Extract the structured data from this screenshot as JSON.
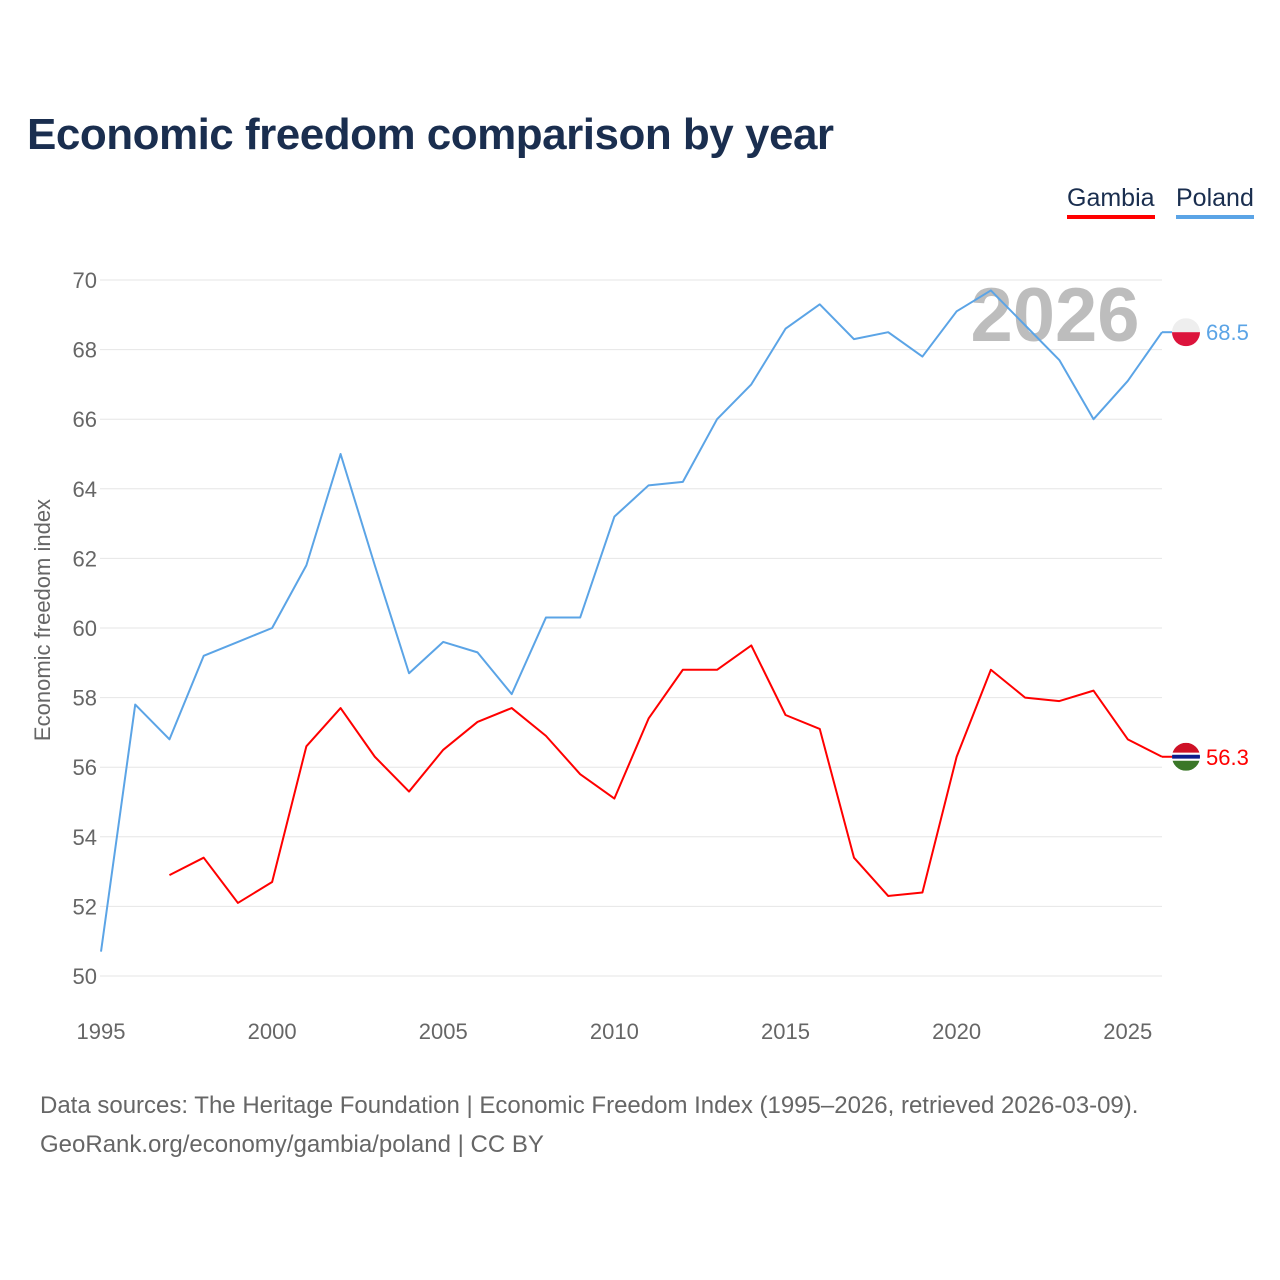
{
  "title": "Economic freedom comparison by year",
  "source_line1": "Data sources: The Heritage Foundation | Economic Freedom Index (1995–2026, retrieved 2026-03-09).",
  "source_line2": "GeoRank.org/economy/gambia/poland | CC BY",
  "chart_data": {
    "type": "line",
    "title": "Economic freedom comparison by year",
    "xlabel": "",
    "ylabel": "Economic freedom index",
    "xlim": [
      1995,
      2026
    ],
    "ylim": [
      50,
      70
    ],
    "xticks": [
      1995,
      2000,
      2005,
      2010,
      2015,
      2020,
      2025
    ],
    "yticks": [
      50,
      52,
      54,
      56,
      58,
      60,
      62,
      64,
      66,
      68,
      70
    ],
    "grid": true,
    "legend_position": "top-right",
    "watermark_year": "2026",
    "series": [
      {
        "name": "Gambia",
        "color": "#ff0000",
        "end_label": "56.3",
        "x": [
          1997,
          1998,
          1999,
          2000,
          2001,
          2002,
          2003,
          2004,
          2005,
          2006,
          2007,
          2008,
          2009,
          2010,
          2011,
          2012,
          2013,
          2014,
          2015,
          2016,
          2017,
          2018,
          2019,
          2020,
          2021,
          2022,
          2023,
          2024,
          2025,
          2026
        ],
        "values": [
          52.9,
          53.4,
          52.1,
          52.7,
          56.6,
          57.7,
          56.3,
          55.3,
          56.5,
          57.3,
          57.7,
          56.9,
          55.8,
          55.1,
          57.4,
          58.8,
          58.8,
          59.5,
          57.5,
          57.1,
          53.4,
          52.3,
          52.4,
          56.3,
          58.8,
          58.0,
          57.9,
          58.2,
          56.8,
          56.3
        ]
      },
      {
        "name": "Poland",
        "color": "#5ba4e6",
        "end_label": "68.5",
        "x": [
          1995,
          1996,
          1997,
          1998,
          1999,
          2000,
          2001,
          2002,
          2003,
          2004,
          2005,
          2006,
          2007,
          2008,
          2009,
          2010,
          2011,
          2012,
          2013,
          2014,
          2015,
          2016,
          2017,
          2018,
          2019,
          2020,
          2021,
          2022,
          2023,
          2024,
          2025,
          2026
        ],
        "values": [
          50.7,
          57.8,
          56.8,
          59.2,
          59.6,
          60.0,
          61.8,
          65.0,
          61.8,
          58.7,
          59.6,
          59.3,
          58.1,
          60.3,
          60.3,
          63.2,
          64.1,
          64.2,
          66.0,
          67.0,
          68.6,
          69.3,
          68.3,
          68.5,
          67.8,
          69.1,
          69.7,
          68.7,
          67.7,
          66.0,
          67.1,
          68.5
        ]
      }
    ]
  }
}
